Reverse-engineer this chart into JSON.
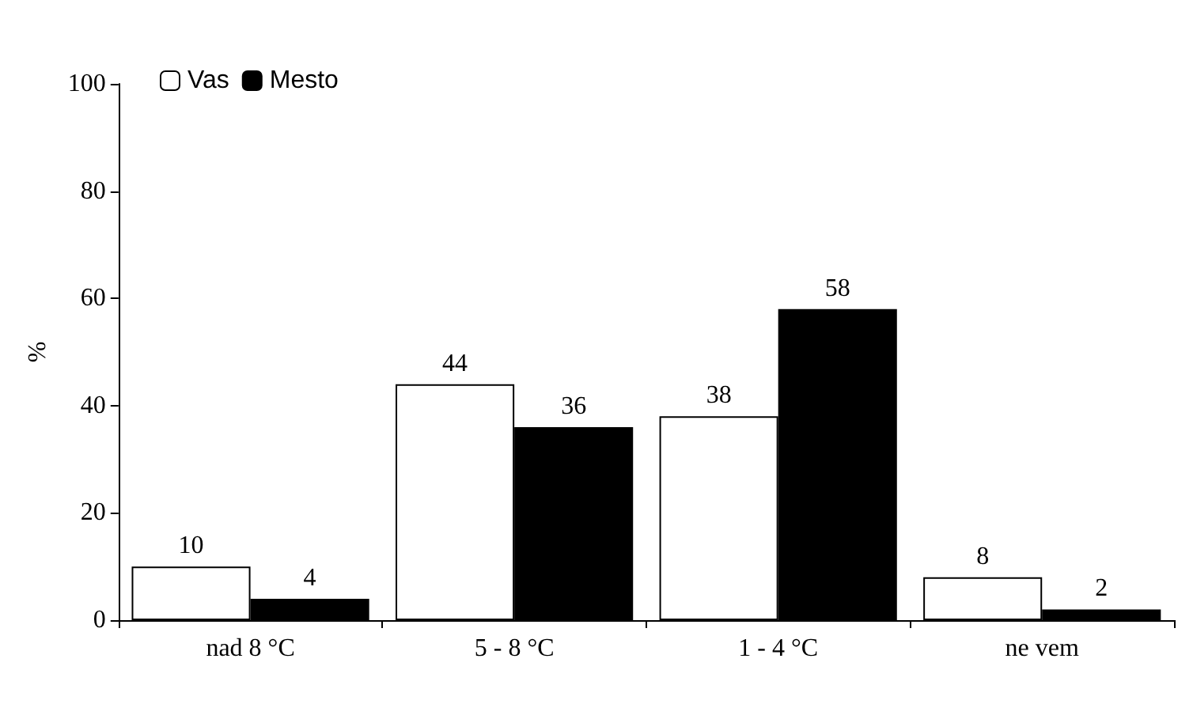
{
  "chart_data": {
    "type": "bar",
    "ylabel": "%",
    "categories": [
      "nad 8 °C",
      "5 - 8 °C",
      "1 - 4 °C",
      "ne vem"
    ],
    "series": [
      {
        "name": "Vas",
        "color": "#ffffff",
        "values": [
          10,
          44,
          38,
          8
        ]
      },
      {
        "name": "Mesto",
        "color": "#000000",
        "values": [
          4,
          36,
          58,
          2
        ]
      }
    ],
    "ylim": [
      0,
      100
    ],
    "yticks": [
      0,
      20,
      40,
      60,
      80,
      100
    ],
    "grid": false,
    "legend": "top left",
    "data_labels": true
  }
}
